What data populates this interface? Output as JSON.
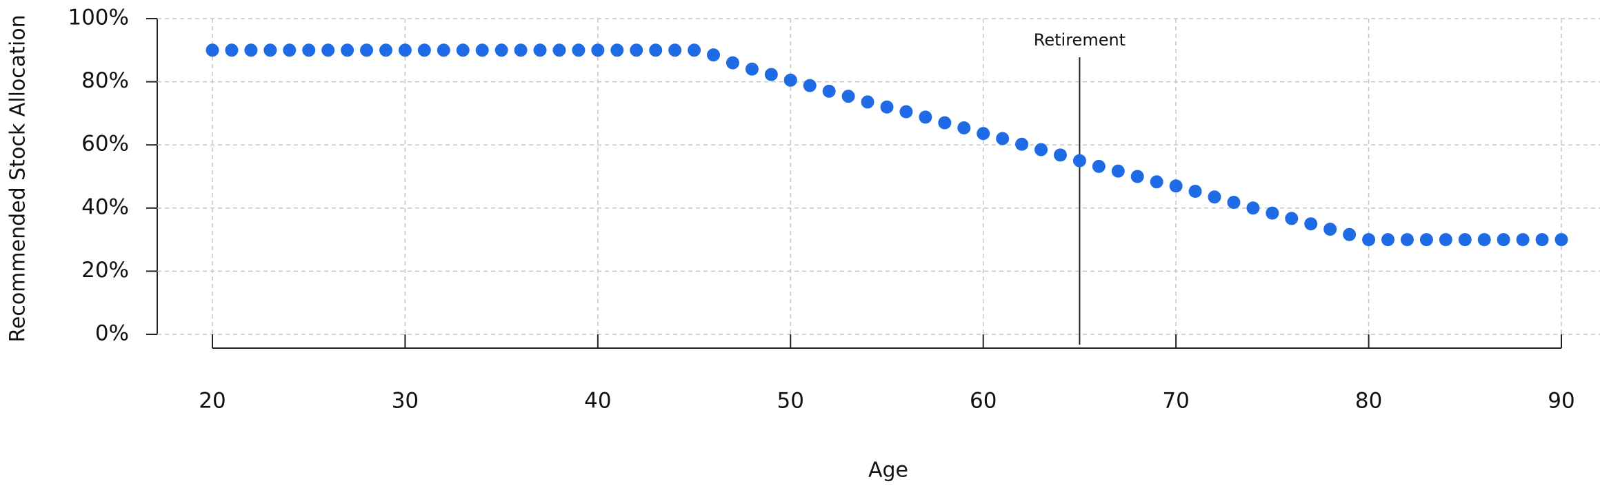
{
  "chart_data": {
    "type": "scatter",
    "x_label": "Age",
    "y_label": "Recommended Stock Allocation",
    "x": [
      20,
      21,
      22,
      23,
      24,
      25,
      26,
      27,
      28,
      29,
      30,
      31,
      32,
      33,
      34,
      35,
      36,
      37,
      38,
      39,
      40,
      41,
      42,
      43,
      44,
      45,
      46,
      47,
      48,
      49,
      50,
      51,
      52,
      53,
      54,
      55,
      56,
      57,
      58,
      59,
      60,
      61,
      62,
      63,
      64,
      65,
      66,
      67,
      68,
      69,
      70,
      71,
      72,
      73,
      74,
      75,
      76,
      77,
      78,
      79,
      80,
      81,
      82,
      83,
      84,
      85,
      86,
      87,
      88,
      89,
      90
    ],
    "values": [
      90,
      90,
      90,
      90,
      90,
      90,
      90,
      90,
      90,
      90,
      90,
      90,
      90,
      90,
      90,
      90,
      90,
      90,
      90,
      90,
      90,
      90,
      90,
      90,
      90,
      90,
      88.5,
      86,
      84,
      82.3,
      80.5,
      78.8,
      77,
      75.4,
      73.6,
      72,
      70.5,
      68.8,
      67,
      65.4,
      63.6,
      62,
      60.2,
      58.5,
      56.8,
      55,
      53.2,
      51.7,
      50,
      48.3,
      47,
      45.3,
      43.5,
      41.8,
      40,
      38.4,
      36.7,
      35,
      33.3,
      31.6,
      30,
      30,
      30,
      30,
      30,
      30,
      30,
      30,
      30,
      30,
      30
    ],
    "color": "#1f6be6",
    "xlim": [
      20,
      90
    ],
    "ylim": [
      0,
      100
    ],
    "xticks": [
      20,
      30,
      40,
      50,
      60,
      70,
      80,
      90
    ],
    "yticks": [
      {
        "value": 0,
        "label": "0%"
      },
      {
        "value": 20,
        "label": "20%"
      },
      {
        "value": 40,
        "label": "40%"
      },
      {
        "value": 60,
        "label": "60%"
      },
      {
        "value": 80,
        "label": "80%"
      },
      {
        "value": 100,
        "label": "100%"
      }
    ],
    "grid": true,
    "annotations": [
      {
        "text": "Retirement",
        "x": 65
      }
    ]
  }
}
